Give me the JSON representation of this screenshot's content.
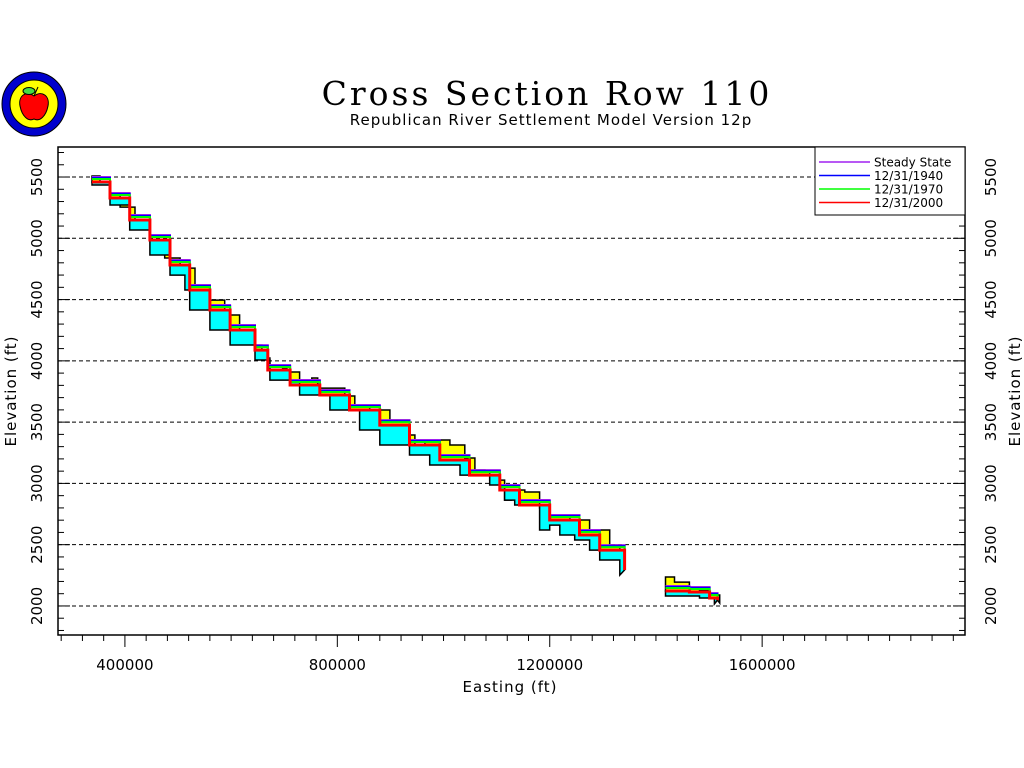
{
  "chart_data": {
    "type": "area",
    "title": "Cross Section Row 110",
    "subtitle": "Republican River Settlement Model Version 12p",
    "xlabel": "Easting (ft)",
    "ylabel": "Elevation (ft)",
    "y2label": "Elevation (ft)",
    "xlim": [
      274000,
      1982000
    ],
    "ylim": [
      1763,
      5745
    ],
    "xticks": [
      400000,
      800000,
      1200000,
      1600000
    ],
    "xtick_labels": [
      "400000",
      "800000",
      "1200000",
      "1600000"
    ],
    "yticks": [
      2000,
      2500,
      3000,
      3500,
      4000,
      4500,
      5000,
      5500
    ],
    "ytick_labels": [
      "2000",
      "2500",
      "3000",
      "3500",
      "4000",
      "4500",
      "5000",
      "5500"
    ],
    "grid": "horizontal dashed",
    "legend_position": "top-right",
    "legend": [
      {
        "name": "Steady State",
        "color": "#a020f0"
      },
      {
        "name": "12/31/1940",
        "color": "#0000ff"
      },
      {
        "name": "12/31/1970",
        "color": "#00ff00"
      },
      {
        "name": "12/31/2000",
        "color": "#ff0000"
      }
    ],
    "fill_colors": {
      "saturated_above_water": "#ffff00",
      "below_water": "#00ffff"
    },
    "segments": [
      {
        "top": [
          [
            338000,
            5508
          ],
          [
            353000,
            5451
          ],
          [
            372000,
            5353
          ],
          [
            391000,
            5255
          ],
          [
            419000,
            5108
          ],
          [
            447000,
            4986
          ],
          [
            475000,
            4839
          ],
          [
            504000,
            4757
          ],
          [
            532000,
            4619
          ],
          [
            560000,
            4496
          ],
          [
            588000,
            4374
          ],
          [
            616000,
            4252
          ],
          [
            645000,
            4129
          ],
          [
            658000,
            4023
          ],
          [
            673000,
            3909
          ],
          [
            697000,
            3941
          ],
          [
            705000,
            3909
          ],
          [
            729000,
            3843
          ],
          [
            752000,
            3860
          ],
          [
            763000,
            3778
          ],
          [
            795000,
            3778
          ],
          [
            814000,
            3713
          ],
          [
            833000,
            3640
          ],
          [
            861000,
            3599
          ],
          [
            899000,
            3517
          ],
          [
            936000,
            3395
          ],
          [
            946000,
            3272
          ],
          [
            965000,
            3354
          ],
          [
            1012000,
            3313
          ],
          [
            1040000,
            3207
          ],
          [
            1059000,
            3109
          ],
          [
            1078000,
            3093
          ],
          [
            1087000,
            3027
          ],
          [
            1115000,
            2864
          ],
          [
            1128000,
            2946
          ],
          [
            1153000,
            2930
          ],
          [
            1181000,
            2799
          ],
          [
            1190000,
            2701
          ],
          [
            1200000,
            2742
          ],
          [
            1238000,
            2701
          ],
          [
            1275000,
            2620
          ],
          [
            1313000,
            2497
          ],
          [
            1332000,
            2416
          ],
          [
            1341000,
            2293
          ]
        ],
        "water": [
          [
            338000,
            5459
          ],
          [
            372000,
            5329
          ],
          [
            409000,
            5149
          ],
          [
            447000,
            4986
          ],
          [
            485000,
            4782
          ],
          [
            522000,
            4578
          ],
          [
            560000,
            4415
          ],
          [
            598000,
            4252
          ],
          [
            645000,
            4088
          ],
          [
            669000,
            3925
          ],
          [
            711000,
            3803
          ],
          [
            767000,
            3721
          ],
          [
            823000,
            3599
          ],
          [
            880000,
            3476
          ],
          [
            936000,
            3313
          ],
          [
            993000,
            3191
          ],
          [
            1049000,
            3068
          ],
          [
            1106000,
            2946
          ],
          [
            1143000,
            2824
          ],
          [
            1200000,
            2701
          ],
          [
            1256000,
            2579
          ],
          [
            1294000,
            2456
          ],
          [
            1341000,
            2293
          ]
        ],
        "bottom": [
          [
            338000,
            5435
          ],
          [
            372000,
            5272
          ],
          [
            409000,
            5068
          ],
          [
            447000,
            4864
          ],
          [
            485000,
            4700
          ],
          [
            513000,
            4578
          ],
          [
            522000,
            4415
          ],
          [
            560000,
            4252
          ],
          [
            598000,
            4129
          ],
          [
            645000,
            4007
          ],
          [
            673000,
            3843
          ],
          [
            729000,
            3721
          ],
          [
            786000,
            3599
          ],
          [
            842000,
            3436
          ],
          [
            880000,
            3313
          ],
          [
            936000,
            3232
          ],
          [
            974000,
            3150
          ],
          [
            1031000,
            3068
          ],
          [
            1087000,
            2987
          ],
          [
            1115000,
            2864
          ],
          [
            1134000,
            2824
          ],
          [
            1181000,
            2620
          ],
          [
            1200000,
            2660
          ],
          [
            1219000,
            2579
          ],
          [
            1247000,
            2538
          ],
          [
            1275000,
            2456
          ],
          [
            1294000,
            2375
          ],
          [
            1332000,
            2252
          ]
        ]
      },
      {
        "top": [
          [
            1418000,
            2236
          ],
          [
            1435000,
            2195
          ],
          [
            1463000,
            2146
          ],
          [
            1482000,
            2130
          ],
          [
            1501000,
            2097
          ],
          [
            1514000,
            2089
          ],
          [
            1520000,
            2024
          ]
        ],
        "water": [
          [
            1418000,
            2122
          ],
          [
            1463000,
            2114
          ],
          [
            1501000,
            2065
          ],
          [
            1516000,
            2048
          ]
        ],
        "bottom": [
          [
            1418000,
            2081
          ],
          [
            1445000,
            2081
          ],
          [
            1482000,
            2065
          ],
          [
            1510000,
            2016
          ]
        ]
      }
    ]
  }
}
